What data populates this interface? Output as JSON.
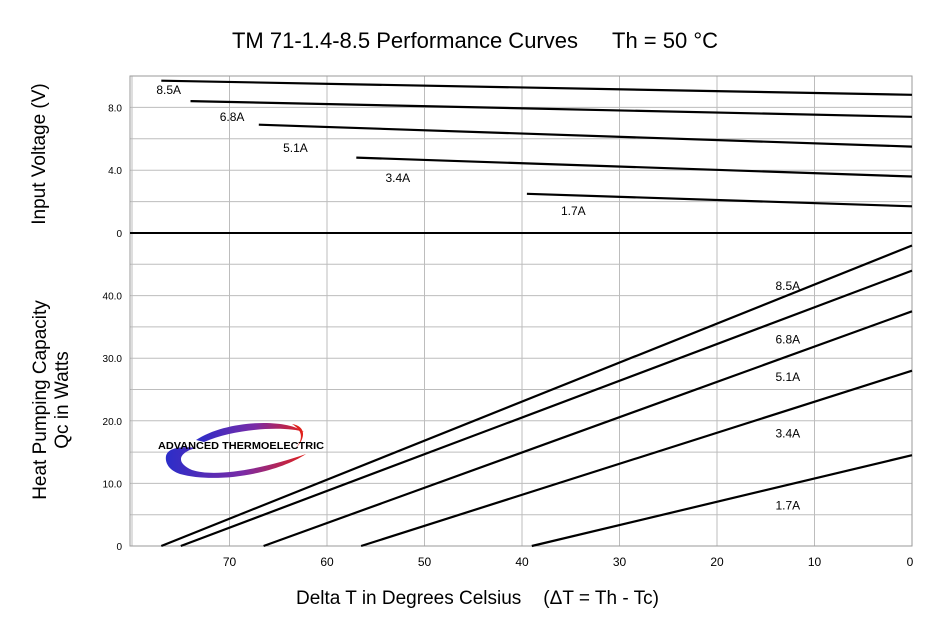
{
  "chart_title": "TM 71-1.4-8.5 Performance Curves",
  "chart_condition": "Th = 50 °C",
  "x_axis_label": "Delta T in Degrees Celsius",
  "x_axis_formula": "(ΔT = Th - Tc)",
  "top_y_label": "Input Voltage (V)",
  "bottom_y_label_line1": "Heat Pumping Capacity",
  "bottom_y_label_line2": "Qc in Watts",
  "logo_text": "ADVANCED THERMOELECTRIC",
  "colors": {
    "curve": "#000000",
    "grid": "#bdbdbd",
    "logo_red": "#e0201b",
    "logo_blue": "#2b2dc9",
    "logo_purple": "#7a2ba6"
  },
  "chart_data": [
    {
      "type": "line",
      "title": "Input Voltage (V)",
      "xlabel": "Delta T in Degrees Celsius",
      "ylabel": "Input Voltage (V)",
      "xlim": [
        0,
        80
      ],
      "x_reversed": true,
      "ylim": [
        0,
        10
      ],
      "yticks": [
        "0",
        "4.0",
        "8.0"
      ],
      "ytick_values": [
        0,
        4,
        8
      ],
      "grid": true,
      "series": [
        {
          "name": "8.5A",
          "label_at": [
            77.5,
            9.1
          ],
          "points": [
            [
              77,
              9.7
            ],
            [
              0,
              8.8
            ]
          ]
        },
        {
          "name": "6.8A",
          "label_at": [
            71,
            7.4
          ],
          "points": [
            [
              74,
              8.4
            ],
            [
              0,
              7.4
            ]
          ]
        },
        {
          "name": "5.1A",
          "label_at": [
            64.5,
            5.4
          ],
          "points": [
            [
              67,
              6.9
            ],
            [
              0,
              5.5
            ]
          ]
        },
        {
          "name": "3.4A",
          "label_at": [
            54,
            3.5
          ],
          "points": [
            [
              57,
              4.8
            ],
            [
              0,
              3.6
            ]
          ]
        },
        {
          "name": "1.7A",
          "label_at": [
            36,
            1.4
          ],
          "points": [
            [
              39.5,
              2.5
            ],
            [
              0,
              1.7
            ]
          ]
        }
      ]
    },
    {
      "type": "line",
      "title": "Heat Pumping Capacity Qc in Watts",
      "xlabel": "Delta T in Degrees Celsius",
      "ylabel": "Qc in Watts",
      "xlim": [
        0,
        80
      ],
      "x_reversed": true,
      "ylim": [
        0,
        50
      ],
      "yticks": [
        "0",
        "10.0",
        "20.0",
        "30.0",
        "40.0"
      ],
      "ytick_values": [
        0,
        10,
        20,
        30,
        40
      ],
      "xticks": [
        "70",
        "60",
        "50",
        "40",
        "30",
        "20",
        "10",
        "0"
      ],
      "xtick_values": [
        70,
        60,
        50,
        40,
        30,
        20,
        10,
        0
      ],
      "grid": true,
      "series": [
        {
          "name": "8.5A",
          "label_at": [
            14,
            41.5
          ],
          "points": [
            [
              77,
              0
            ],
            [
              0,
              48
            ]
          ]
        },
        {
          "name": "6.8A",
          "label_at": [
            14,
            33.0
          ],
          "points": [
            [
              75,
              0
            ],
            [
              0,
              44
            ]
          ]
        },
        {
          "name": "5.1A",
          "label_at": [
            14,
            27.0
          ],
          "points": [
            [
              66.5,
              0
            ],
            [
              0,
              37.5
            ]
          ]
        },
        {
          "name": "3.4A",
          "label_at": [
            14,
            18.0
          ],
          "points": [
            [
              56.5,
              0
            ],
            [
              0,
              28
            ]
          ]
        },
        {
          "name": "1.7A",
          "label_at": [
            14,
            6.5
          ],
          "points": [
            [
              39,
              0
            ],
            [
              0,
              14.5
            ]
          ]
        }
      ]
    }
  ]
}
